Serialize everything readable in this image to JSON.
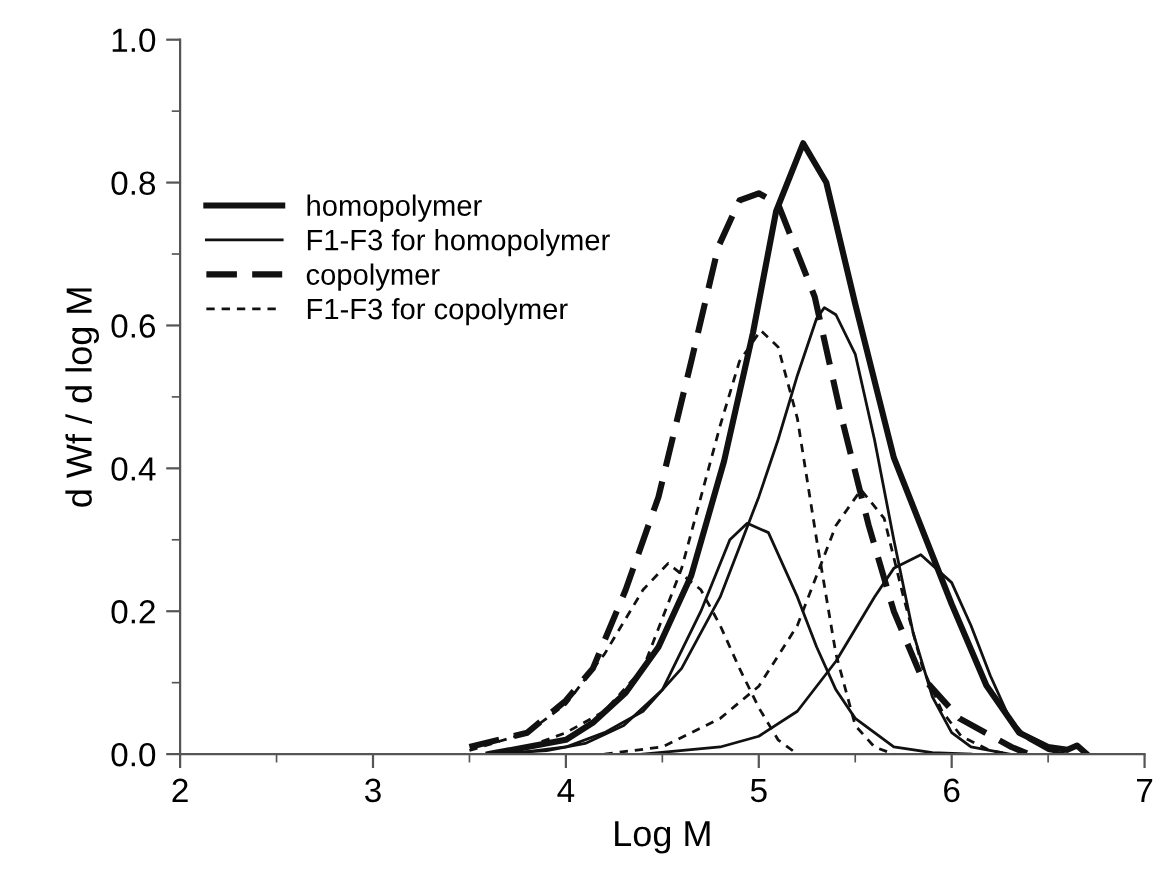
{
  "chart_data": {
    "type": "line",
    "xlabel": "Log M",
    "ylabel": "d Wf / d log M",
    "xlim": [
      2,
      7
    ],
    "xticks": [
      2,
      3,
      4,
      5,
      6,
      7
    ],
    "ylim": [
      0,
      1.0
    ],
    "yticks": [
      {
        "value": 0,
        "label": "0.0"
      },
      {
        "value": 0.2,
        "label": "0.2"
      },
      {
        "value": 0.4,
        "label": "0.4"
      },
      {
        "value": 0.6,
        "label": "0.6"
      },
      {
        "value": 0.8,
        "label": "0.8"
      },
      {
        "value": 1.0,
        "label": "1.0"
      }
    ],
    "grid": false,
    "legend": "top left",
    "marker": "none",
    "series": [
      {
        "name": "homopolymer",
        "color": "#111111",
        "line_style": "solid",
        "x": [
          3.6,
          4.0,
          4.14,
          4.31,
          4.48,
          4.65,
          4.82,
          4.97,
          5.09,
          5.23,
          5.35,
          5.5,
          5.7,
          6.0,
          6.18,
          6.35,
          6.5,
          6.6,
          6.65,
          6.7
        ],
        "values": [
          0,
          0.02,
          0.044,
          0.086,
          0.15,
          0.25,
          0.41,
          0.59,
          0.76,
          0.855,
          0.8,
          0.63,
          0.415,
          0.21,
          0.096,
          0.03,
          0.01,
          0.006,
          0.012,
          0
        ]
      },
      {
        "name": "F1-F3 for homopolymer",
        "color": "#111111",
        "line_style": "solid",
        "x": [
          3.6,
          3.9,
          4.1,
          4.3,
          4.5,
          4.7,
          4.85,
          4.94,
          5.05,
          5.2,
          5.3,
          5.4,
          5.5,
          5.7,
          5.9,
          6.1
        ],
        "values": [
          0,
          0.005,
          0.015,
          0.04,
          0.09,
          0.2,
          0.3,
          0.323,
          0.31,
          0.22,
          0.15,
          0.09,
          0.05,
          0.01,
          0.002,
          0
        ]
      },
      {
        "color": "#111111",
        "line_style": "solid",
        "x": [
          3.7,
          4.0,
          4.2,
          4.4,
          4.6,
          4.8,
          5.0,
          5.1,
          5.2,
          5.3,
          5.34,
          5.4,
          5.5,
          5.6,
          5.7,
          5.8,
          5.9,
          6.0,
          6.1,
          6.3
        ],
        "values": [
          0,
          0.01,
          0.03,
          0.06,
          0.12,
          0.22,
          0.36,
          0.44,
          0.53,
          0.61,
          0.625,
          0.615,
          0.56,
          0.44,
          0.3,
          0.17,
          0.08,
          0.03,
          0.01,
          0
        ]
      },
      {
        "color": "#111111",
        "line_style": "solid",
        "x": [
          4.4,
          4.8,
          5.0,
          5.2,
          5.4,
          5.6,
          5.7,
          5.84,
          6.0,
          6.1,
          6.2,
          6.3,
          6.4,
          6.5,
          6.6
        ],
        "values": [
          0,
          0.01,
          0.025,
          0.06,
          0.13,
          0.22,
          0.26,
          0.279,
          0.24,
          0.18,
          0.11,
          0.05,
          0.02,
          0.005,
          0
        ]
      },
      {
        "name": "copolymer",
        "color": "#111111",
        "line_style": "dashed",
        "x": [
          3.5,
          3.8,
          4.0,
          4.14,
          4.31,
          4.48,
          4.65,
          4.79,
          4.9,
          5.0,
          5.1,
          5.29,
          5.43,
          5.57,
          5.7,
          5.84,
          6.04,
          6.31,
          6.4
        ],
        "values": [
          0.01,
          0.03,
          0.075,
          0.12,
          0.23,
          0.36,
          0.55,
          0.71,
          0.775,
          0.785,
          0.77,
          0.64,
          0.47,
          0.32,
          0.2,
          0.11,
          0.05,
          0.01,
          0
        ]
      },
      {
        "name": "F1-F3 for copolymer",
        "color": "#111111",
        "line_style": "dashed",
        "x": [
          3.5,
          3.8,
          4.0,
          4.2,
          4.4,
          4.53,
          4.7,
          4.8,
          4.9,
          5.0,
          5.1,
          5.2
        ],
        "values": [
          0.005,
          0.03,
          0.07,
          0.14,
          0.23,
          0.267,
          0.23,
          0.18,
          0.12,
          0.065,
          0.02,
          0
        ]
      },
      {
        "color": "#111111",
        "line_style": "dashed",
        "x": [
          3.8,
          4.0,
          4.2,
          4.4,
          4.6,
          4.8,
          4.9,
          5.01,
          5.1,
          5.2,
          5.3,
          5.4,
          5.5,
          5.6,
          5.7
        ],
        "values": [
          0.01,
          0.03,
          0.06,
          0.12,
          0.26,
          0.46,
          0.55,
          0.593,
          0.57,
          0.47,
          0.3,
          0.14,
          0.04,
          0.01,
          0
        ]
      },
      {
        "color": "#111111",
        "line_style": "dashed",
        "x": [
          4.2,
          4.5,
          4.8,
          5.0,
          5.2,
          5.4,
          5.53,
          5.65,
          5.75,
          5.85,
          5.95,
          6.05,
          6.2,
          6.3
        ],
        "values": [
          0,
          0.01,
          0.05,
          0.095,
          0.18,
          0.32,
          0.37,
          0.33,
          0.22,
          0.12,
          0.06,
          0.025,
          0.005,
          0
        ]
      }
    ]
  }
}
